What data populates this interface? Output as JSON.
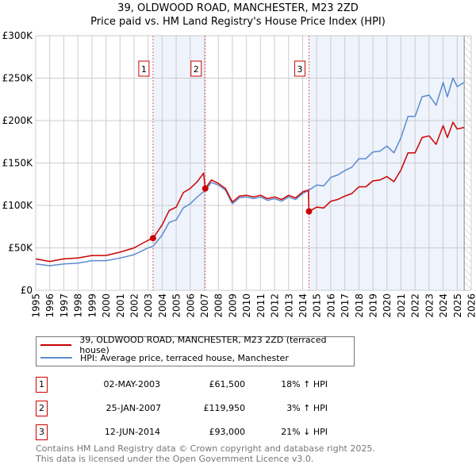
{
  "title": "39, OLDWOOD ROAD, MANCHESTER, M23 2ZD",
  "subtitle": "Price paid vs. HM Land Registry's House Price Index (HPI)",
  "colors": {
    "property": "#cc0000",
    "hpi": "#5b8bd0",
    "shade": "#eef3fc",
    "grid": "#cccccc"
  },
  "chart_data": {
    "type": "line",
    "title": "39, OLDWOOD ROAD, MANCHESTER, M23 2ZD — Price paid vs. HM Land Registry's House Price Index (HPI)",
    "xlim": [
      1995,
      2026
    ],
    "ylim": [
      0,
      300000
    ],
    "x_ticks": [
      "1995",
      "1996",
      "1997",
      "1998",
      "1999",
      "2000",
      "2001",
      "2002",
      "2003",
      "2004",
      "2005",
      "2006",
      "2007",
      "2008",
      "2009",
      "2010",
      "2011",
      "2012",
      "2013",
      "2014",
      "2015",
      "2016",
      "2017",
      "2018",
      "2019",
      "2020",
      "2021",
      "2022",
      "2023",
      "2024",
      "2025",
      "2026"
    ],
    "y_ticks": [
      {
        "v": 0,
        "label": "£0"
      },
      {
        "v": 50000,
        "label": "£50K"
      },
      {
        "v": 100000,
        "label": "£100K"
      },
      {
        "v": 150000,
        "label": "£150K"
      },
      {
        "v": 200000,
        "label": "£200K"
      },
      {
        "v": 250000,
        "label": "£250K"
      },
      {
        "v": 300000,
        "label": "£300K"
      }
    ],
    "grid": true,
    "legend_placement": "below",
    "shaded_periods": [
      [
        2003.35,
        2007.07
      ],
      [
        2014.45,
        2025.5
      ]
    ],
    "future_hatch_from": 2025.5,
    "series": [
      {
        "name": "39, OLDWOOD ROAD, MANCHESTER, M23 2ZD (terraced house)",
        "color": "#cc0000",
        "points": [
          [
            1995,
            37
          ],
          [
            1996,
            34
          ],
          [
            1997,
            37
          ],
          [
            1998,
            38
          ],
          [
            1999,
            41
          ],
          [
            2000,
            41
          ],
          [
            2001,
            45
          ],
          [
            2002,
            50
          ],
          [
            2003,
            59
          ],
          [
            2003.35,
            61.5
          ],
          [
            2004,
            77
          ],
          [
            2004.5,
            94
          ],
          [
            2005,
            98
          ],
          [
            2005.5,
            115
          ],
          [
            2006,
            120
          ],
          [
            2006.5,
            128
          ],
          [
            2006.95,
            138
          ],
          [
            2007.07,
            119.95
          ],
          [
            2007.5,
            130
          ],
          [
            2008,
            126
          ],
          [
            2008.5,
            120
          ],
          [
            2009,
            104
          ],
          [
            2009.5,
            111
          ],
          [
            2010,
            112
          ],
          [
            2010.5,
            110
          ],
          [
            2011,
            112
          ],
          [
            2011.5,
            108
          ],
          [
            2012,
            110
          ],
          [
            2012.5,
            107
          ],
          [
            2013,
            112
          ],
          [
            2013.5,
            109
          ],
          [
            2014,
            116
          ],
          [
            2014.4,
            118
          ],
          [
            2014.45,
            93
          ],
          [
            2015,
            98
          ],
          [
            2015.5,
            97
          ],
          [
            2016,
            105
          ],
          [
            2016.5,
            107
          ],
          [
            2017,
            111
          ],
          [
            2017.5,
            114
          ],
          [
            2018,
            122
          ],
          [
            2018.5,
            122
          ],
          [
            2019,
            129
          ],
          [
            2019.5,
            130
          ],
          [
            2020,
            134
          ],
          [
            2020.5,
            128
          ],
          [
            2021,
            142
          ],
          [
            2021.5,
            162
          ],
          [
            2022,
            162
          ],
          [
            2022.5,
            180
          ],
          [
            2023,
            182
          ],
          [
            2023.5,
            172
          ],
          [
            2024,
            194
          ],
          [
            2024.3,
            180
          ],
          [
            2024.7,
            198
          ],
          [
            2025,
            190
          ],
          [
            2025.5,
            192
          ]
        ]
      },
      {
        "name": "HPI: Average price, terraced house, Manchester",
        "color": "#5b8bd0",
        "points": [
          [
            1995,
            31
          ],
          [
            1996,
            29
          ],
          [
            1997,
            31
          ],
          [
            1998,
            32
          ],
          [
            1999,
            35
          ],
          [
            2000,
            35
          ],
          [
            2001,
            38
          ],
          [
            2002,
            42
          ],
          [
            2003,
            50
          ],
          [
            2003.35,
            52
          ],
          [
            2004,
            65
          ],
          [
            2004.5,
            80
          ],
          [
            2005,
            83
          ],
          [
            2005.5,
            97
          ],
          [
            2006,
            102
          ],
          [
            2006.5,
            110
          ],
          [
            2007.07,
            118
          ],
          [
            2007.5,
            127
          ],
          [
            2008,
            124
          ],
          [
            2008.5,
            118
          ],
          [
            2009,
            102
          ],
          [
            2009.5,
            109
          ],
          [
            2010,
            110
          ],
          [
            2010.5,
            108
          ],
          [
            2011,
            110
          ],
          [
            2011.5,
            106
          ],
          [
            2012,
            108
          ],
          [
            2012.5,
            105
          ],
          [
            2013,
            110
          ],
          [
            2013.5,
            107
          ],
          [
            2014,
            114
          ],
          [
            2014.45,
            118
          ],
          [
            2015,
            124
          ],
          [
            2015.5,
            123
          ],
          [
            2016,
            133
          ],
          [
            2016.5,
            136
          ],
          [
            2017,
            141
          ],
          [
            2017.5,
            145
          ],
          [
            2018,
            155
          ],
          [
            2018.5,
            155
          ],
          [
            2019,
            163
          ],
          [
            2019.5,
            164
          ],
          [
            2020,
            170
          ],
          [
            2020.5,
            162
          ],
          [
            2021,
            180
          ],
          [
            2021.5,
            205
          ],
          [
            2022,
            205
          ],
          [
            2022.5,
            228
          ],
          [
            2023,
            230
          ],
          [
            2023.5,
            218
          ],
          [
            2024,
            245
          ],
          [
            2024.3,
            228
          ],
          [
            2024.7,
            250
          ],
          [
            2025,
            240
          ],
          [
            2025.5,
            245
          ]
        ]
      }
    ],
    "y_unit": "thousands GBP",
    "sales": [
      {
        "id": "1",
        "x": 2003.35,
        "y": 61.5
      },
      {
        "id": "2",
        "x": 2007.07,
        "y": 119.95
      },
      {
        "id": "3",
        "x": 2014.45,
        "y": 93
      }
    ]
  },
  "legend": {
    "property": "39, OLDWOOD ROAD, MANCHESTER, M23 2ZD (terraced house)",
    "hpi": "HPI: Average price, terraced house, Manchester"
  },
  "transactions": [
    {
      "id": "1",
      "date": "02-MAY-2003",
      "price": "£61,500",
      "hpi": "18% ↑ HPI"
    },
    {
      "id": "2",
      "date": "25-JAN-2007",
      "price": "£119,950",
      "hpi": "3% ↑ HPI"
    },
    {
      "id": "3",
      "date": "12-JUN-2014",
      "price": "£93,000",
      "hpi": "21% ↓ HPI"
    }
  ],
  "footer": {
    "line1": "Contains HM Land Registry data © Crown copyright and database right 2025.",
    "line2": "This data is licensed under the Open Government Licence v3.0."
  }
}
